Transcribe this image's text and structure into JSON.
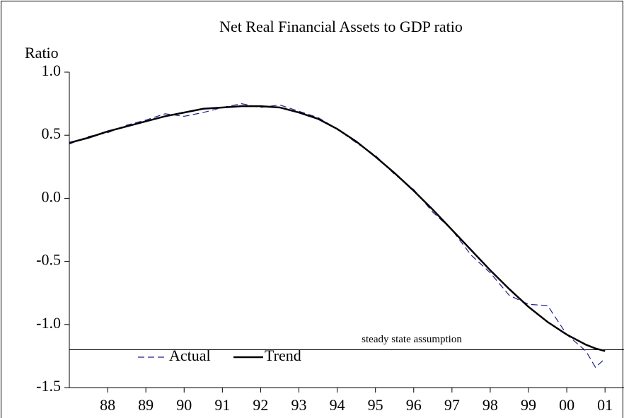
{
  "chart_data": {
    "type": "line",
    "title": "Net Real Financial Assets to GDP ratio",
    "y_label": "Ratio",
    "annotation": "steady state assumption",
    "reference_line": -1.2,
    "x": [
      1987.0,
      1987.5,
      1988.0,
      1988.5,
      1989.0,
      1989.5,
      1990.0,
      1990.5,
      1991.0,
      1991.5,
      1992.0,
      1992.5,
      1993.0,
      1993.5,
      1994.0,
      1994.5,
      1995.0,
      1995.5,
      1996.0,
      1996.5,
      1997.0,
      1997.5,
      1998.0,
      1998.5,
      1999.0,
      1999.5,
      2000.0,
      2000.5,
      2000.75,
      2001.0
    ],
    "series": [
      {
        "name": "Actual",
        "color": "#1f1f8f",
        "dashed": true,
        "values": [
          0.43,
          0.49,
          0.52,
          0.58,
          0.62,
          0.67,
          0.65,
          0.68,
          0.72,
          0.75,
          0.72,
          0.74,
          0.69,
          0.64,
          0.55,
          0.44,
          0.34,
          0.19,
          0.07,
          -0.11,
          -0.25,
          -0.45,
          -0.59,
          -0.77,
          -0.84,
          -0.85,
          -1.08,
          -1.21,
          -1.34,
          -1.27
        ]
      },
      {
        "name": "Trend",
        "color": "#000000",
        "dashed": false,
        "values": [
          0.44,
          0.48,
          0.53,
          0.57,
          0.61,
          0.65,
          0.68,
          0.71,
          0.72,
          0.73,
          0.73,
          0.72,
          0.68,
          0.63,
          0.55,
          0.45,
          0.33,
          0.2,
          0.06,
          -0.09,
          -0.25,
          -0.41,
          -0.57,
          -0.72,
          -0.86,
          -0.98,
          -1.08,
          -1.16,
          -1.19,
          -1.21
        ]
      }
    ],
    "xlim": [
      1987.0,
      2001.2
    ],
    "xticks": [
      {
        "value": 1988,
        "label": "88"
      },
      {
        "value": 1989,
        "label": "89"
      },
      {
        "value": 1990,
        "label": "90"
      },
      {
        "value": 1991,
        "label": "91"
      },
      {
        "value": 1992,
        "label": "92"
      },
      {
        "value": 1993,
        "label": "93"
      },
      {
        "value": 1994,
        "label": "94"
      },
      {
        "value": 1995,
        "label": "95"
      },
      {
        "value": 1996,
        "label": "96"
      },
      {
        "value": 1997,
        "label": "97"
      },
      {
        "value": 1998,
        "label": "98"
      },
      {
        "value": 1999,
        "label": "99"
      },
      {
        "value": 2000,
        "label": "00"
      },
      {
        "value": 2001,
        "label": "01"
      }
    ],
    "ylim": [
      -1.5,
      1.0
    ],
    "yticks": [
      {
        "value": 1.0,
        "label": "1.0"
      },
      {
        "value": 0.5,
        "label": "0.5"
      },
      {
        "value": 0.0,
        "label": "0.0"
      },
      {
        "value": -0.5,
        "label": "-0.5"
      },
      {
        "value": -1.0,
        "label": "-1.0"
      },
      {
        "value": -1.5,
        "label": "-1.5"
      }
    ]
  }
}
